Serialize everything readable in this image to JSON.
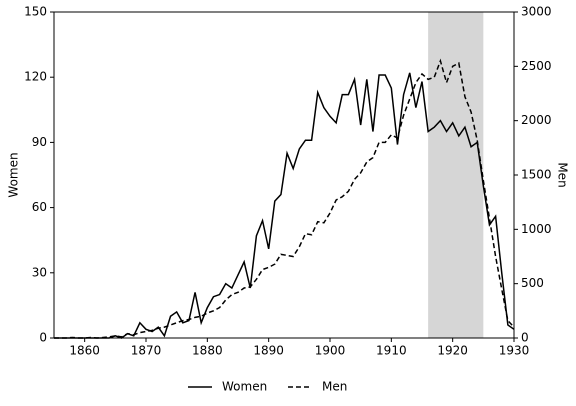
{
  "chart_data": {
    "type": "line",
    "x": [
      1855,
      1856,
      1857,
      1858,
      1859,
      1860,
      1861,
      1862,
      1863,
      1864,
      1865,
      1866,
      1867,
      1868,
      1869,
      1870,
      1871,
      1872,
      1873,
      1874,
      1875,
      1876,
      1877,
      1878,
      1879,
      1880,
      1881,
      1882,
      1883,
      1884,
      1885,
      1886,
      1887,
      1888,
      1889,
      1890,
      1891,
      1892,
      1893,
      1894,
      1895,
      1896,
      1897,
      1898,
      1899,
      1900,
      1901,
      1902,
      1903,
      1904,
      1905,
      1906,
      1907,
      1908,
      1909,
      1910,
      1911,
      1912,
      1913,
      1914,
      1915,
      1916,
      1917,
      1918,
      1919,
      1920,
      1921,
      1922,
      1923,
      1924,
      1925,
      1926,
      1927,
      1928,
      1929,
      1930
    ],
    "series": [
      {
        "name": "Women",
        "color": "#000000",
        "dash": "solid",
        "axis": "y",
        "values": [
          0,
          0,
          0,
          0,
          0,
          0,
          0,
          0,
          0,
          0,
          1,
          0,
          2,
          1,
          7,
          4,
          3,
          5,
          1,
          10,
          12,
          7,
          8,
          21,
          7,
          14,
          19,
          20,
          25,
          23,
          29,
          35,
          23,
          47,
          54,
          41,
          63,
          66,
          85,
          78,
          87,
          91,
          91,
          113,
          106,
          102,
          99,
          112,
          112,
          119,
          98,
          119,
          95,
          121,
          121,
          115,
          89,
          112,
          122,
          106,
          118,
          95,
          97,
          100,
          95,
          99,
          93,
          97,
          88,
          90,
          70,
          52,
          56,
          30,
          6,
          4
        ]
      },
      {
        "name": "Men",
        "color": "#000000",
        "dash": "dashed",
        "axis": "y2",
        "values": [
          0,
          0,
          0,
          5,
          0,
          0,
          5,
          0,
          5,
          10,
          20,
          10,
          40,
          30,
          50,
          60,
          70,
          90,
          100,
          120,
          140,
          160,
          170,
          190,
          200,
          230,
          250,
          280,
          350,
          400,
          420,
          460,
          470,
          540,
          630,
          650,
          680,
          770,
          760,
          750,
          840,
          960,
          950,
          1070,
          1060,
          1150,
          1270,
          1300,
          1350,
          1460,
          1520,
          1620,
          1660,
          1800,
          1800,
          1870,
          1840,
          2050,
          2200,
          2350,
          2430,
          2380,
          2400,
          2550,
          2350,
          2500,
          2530,
          2220,
          2080,
          1820,
          1450,
          1100,
          750,
          450,
          160,
          100
        ]
      }
    ],
    "ylabel": "Women",
    "y2label": "Men",
    "xlim": [
      1855,
      1930
    ],
    "xticks": [
      1860,
      1870,
      1880,
      1890,
      1900,
      1910,
      1920,
      1930
    ],
    "ylim": [
      0,
      150
    ],
    "yticks": [
      0,
      30,
      60,
      90,
      120,
      150
    ],
    "y2lim": [
      0,
      3000
    ],
    "y2ticks": [
      0,
      500,
      1000,
      1500,
      2000,
      2500,
      3000
    ],
    "span": [
      1916,
      1925
    ],
    "span_color": "#d6d6d6",
    "legend": "bottom"
  }
}
